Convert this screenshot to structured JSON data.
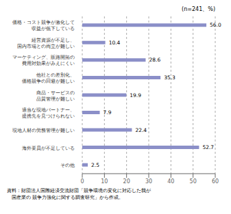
{
  "chart_data": {
    "type": "bar",
    "orientation": "horizontal",
    "categories": [
      "価格・コスト競争が激化して\n収益が低下している",
      "経営資源が不足し、\n国内市場との両立が難しい",
      "マーケティング、販路開拓の\n費用対効果がみえにくい",
      "他社との差別化、\n価格競争の回避が難しい",
      "商品・サービスの\n品質管理が難しい",
      "適当な現地パートナー、\n提携先を見つけられない",
      "現地人材の労務管理が難しい",
      "海外要員が不足している",
      "その他"
    ],
    "values": [
      56.0,
      10.4,
      28.6,
      35.3,
      19.9,
      7.9,
      22.4,
      52.7,
      2.5
    ],
    "value_labels": [
      "56.0",
      "10.4",
      "28.6",
      "35.3",
      "19.9",
      "7.9",
      "22.4",
      "52.7",
      "2.5"
    ],
    "data_labels": true,
    "color": "#8b8fc8",
    "xlim": [
      0,
      60
    ],
    "xticks": [
      0,
      10,
      20,
      30,
      40,
      50,
      60
    ],
    "grid": true,
    "annotations": [
      "(n=241、%)",
      "資料：財団法人国際経済交流財団「競争環境の変化に対応した我が",
      "　国産業の 競争力強化に関する調査研究」から作成。"
    ]
  }
}
